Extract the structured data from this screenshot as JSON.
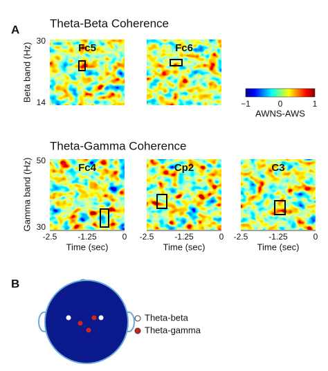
{
  "panel_a": {
    "label": "A",
    "rows": [
      {
        "title": "Theta-Beta Coherence",
        "y_label": "Beta band (Hz)",
        "y_ticks": [
          "30",
          "14"
        ],
        "maps": [
          "Fc5",
          "Fc6"
        ]
      },
      {
        "title": "Theta-Gamma Coherence",
        "y_label": "Gamma band (Hz)",
        "y_ticks": [
          "50",
          "30"
        ],
        "maps": [
          "Fc4",
          "Cp2",
          "C3"
        ]
      }
    ],
    "x_ticks": [
      "-2.5",
      "-1.25",
      "0"
    ],
    "x_label": "Time (sec)",
    "colorbar": {
      "ticks": [
        "−1",
        "0",
        "1"
      ],
      "label": "AWNS-AWS"
    }
  },
  "panel_b": {
    "label": "B",
    "legend": [
      "Theta-beta",
      "Theta-gamma"
    ]
  }
}
